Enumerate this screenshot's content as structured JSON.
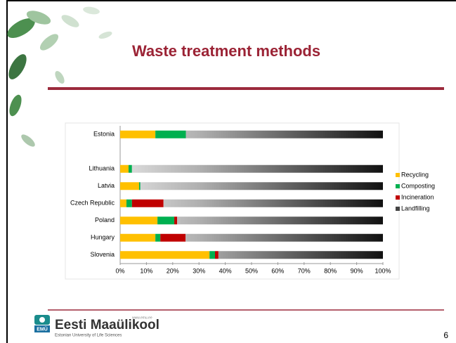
{
  "chart_data": {
    "type": "stacked-bar-horizontal",
    "title": "Waste treatment methods",
    "categories": [
      "Estonia",
      null,
      "Lithuania",
      "Latvia",
      "Czech Republic",
      "Poland",
      "Hungary",
      "Slovenia"
    ],
    "series": [
      {
        "name": "Recycling",
        "color": "#ffc000",
        "values": [
          13.4,
          null,
          3.2,
          7.2,
          2.4,
          14.2,
          13.4,
          34
        ]
      },
      {
        "name": "Composting",
        "color": "#00b050",
        "values": [
          11.6,
          null,
          1.3,
          0.5,
          2.1,
          6.4,
          1.9,
          2.1
        ]
      },
      {
        "name": "Incineration",
        "color": "#c00000",
        "values": [
          0,
          null,
          0,
          0,
          12,
          1.1,
          9.6,
          1.3
        ]
      },
      {
        "name": "Landfilling",
        "color": "#111111",
        "values": [
          75,
          null,
          95.5,
          92.3,
          83.5,
          78.3,
          75.1,
          62.6
        ]
      }
    ],
    "xlim": [
      0,
      100
    ],
    "xticks": [
      {
        "value": 0,
        "label": "0%"
      },
      {
        "value": 10,
        "label": "10%"
      },
      {
        "value": 20,
        "label": "20%"
      },
      {
        "value": 30,
        "label": "30%"
      },
      {
        "value": 40,
        "label": "40%"
      },
      {
        "value": 50,
        "label": "50%"
      },
      {
        "value": 60,
        "label": "60%"
      },
      {
        "value": 70,
        "label": "70%"
      },
      {
        "value": 80,
        "label": "80%"
      },
      {
        "value": 90,
        "label": "90%"
      },
      {
        "value": 100,
        "label": "100%"
      }
    ],
    "legend": "right"
  },
  "slide": {
    "university": "Eesti Maaülikool",
    "website": "www.emu.ee",
    "subtitle": "Estonian University of Life Sciences",
    "logo": "EMÜ",
    "page_number": "6"
  }
}
